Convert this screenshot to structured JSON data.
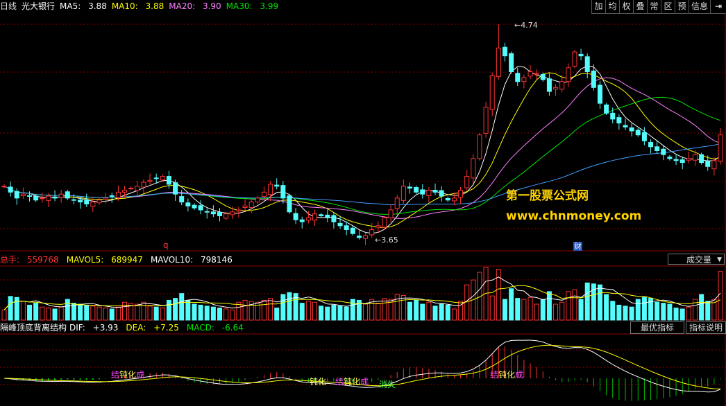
{
  "header": {
    "period": "日线",
    "stock": "光大银行",
    "ma5_label": "MA5:",
    "ma5": "3.88",
    "ma10_label": "MA10:",
    "ma10": "3.88",
    "ma20_label": "MA20:",
    "ma20": "3.90",
    "ma30_label": "MA30:",
    "ma30": "3.99"
  },
  "toolbar": [
    "加",
    "均",
    "权",
    "叠",
    "常",
    "区",
    "预"
  ],
  "toolbar_info": "信息",
  "price_panel": {
    "high_label": "4.74",
    "low_label": "3.65",
    "marker_q": "q",
    "marker_cai": "财"
  },
  "watermark": {
    "line1": "第一股票公式网",
    "line2": "www.chnmoney.com"
  },
  "volume_header": {
    "total_label": "总手:",
    "total": "559768",
    "mavol5_label": "MAVOL5:",
    "mavol5": "689947",
    "mavol10_label": "MAVOL10:",
    "mavol10": "798146",
    "dropdown": "成交量"
  },
  "macd_header": {
    "name": "隔峰顶底背离结构",
    "dif_label": "DIF:",
    "dif": "+3.93",
    "dea_label": "DEA:",
    "dea": "+7.25",
    "macd_label": "MACD:",
    "macd": "-6.64",
    "btn_best": "最优指标",
    "btn_help": "指标说明"
  },
  "macd_annotations": [
    {
      "text": "结",
      "color": "#ff44ff"
    },
    {
      "text": "钝化",
      "color": "#ffff66"
    },
    {
      "text": "成",
      "color": "#ff44ff"
    },
    {
      "text": "钝化",
      "color": "#ffff66"
    },
    {
      "text": "结",
      "color": "#ff44ff"
    },
    {
      "text": "钝化",
      "color": "#ffff66"
    },
    {
      "text": "成",
      "color": "#ff44ff"
    },
    {
      "text": "消失",
      "color": "#44ff44"
    },
    {
      "text": "结",
      "color": "#ff44ff"
    },
    {
      "text": "钝化",
      "color": "#ffff66"
    },
    {
      "text": "成",
      "color": "#ff44ff"
    }
  ],
  "colors": {
    "up": "#ff3232",
    "down": "#54fcfc",
    "ma5": "#ffffff",
    "ma10": "#ffff00",
    "ma20": "#ff80ff",
    "ma30": "#00e600",
    "ma60": "#40a0ff",
    "grid": "#8b0000"
  },
  "chart_data": {
    "type": "candlestick",
    "ohlc_start": [
      3.92,
      3.9,
      3.86,
      3.88,
      3.85,
      3.86,
      3.88,
      3.87
    ],
    "price_levels": {
      "high": 4.74,
      "low": 3.65,
      "ma5": 3.88,
      "ma10": 3.88,
      "ma20": 3.9,
      "ma30": 3.99
    },
    "volume_levels": {
      "total": 559768,
      "mavol5": 689947,
      "mavol10": 798146
    },
    "macd_levels": {
      "dif": 3.93,
      "dea": 7.25,
      "macd": -6.64
    },
    "closes": [
      3.92,
      3.89,
      3.86,
      3.88,
      3.87,
      3.85,
      3.86,
      3.87,
      3.86,
      3.88,
      3.86,
      3.85,
      3.84,
      3.83,
      3.84,
      3.85,
      3.86,
      3.87,
      3.89,
      3.9,
      3.91,
      3.92,
      3.94,
      3.95,
      3.96,
      3.97,
      3.93,
      3.88,
      3.84,
      3.82,
      3.81,
      3.8,
      3.79,
      3.78,
      3.77,
      3.78,
      3.79,
      3.8,
      3.82,
      3.84,
      3.86,
      3.89,
      3.93,
      3.92,
      3.86,
      3.79,
      3.75,
      3.74,
      3.76,
      3.78,
      3.77,
      3.76,
      3.74,
      3.72,
      3.7,
      3.68,
      3.66,
      3.67,
      3.7,
      3.72,
      3.76,
      3.8,
      3.86,
      3.92,
      3.91,
      3.89,
      3.88,
      3.9,
      3.89,
      3.87,
      3.85,
      3.86,
      3.9,
      3.97,
      4.06,
      4.18,
      4.32,
      4.48,
      4.62,
      4.58,
      4.5,
      4.45,
      4.47,
      4.5,
      4.49,
      4.46,
      4.4,
      4.42,
      4.45,
      4.52,
      4.6,
      4.58,
      4.5,
      4.42,
      4.34,
      4.29,
      4.26,
      4.24,
      4.22,
      4.2,
      4.18,
      4.15,
      4.12,
      4.1,
      4.08,
      4.06,
      4.05,
      4.04,
      4.06,
      4.08,
      4.04,
      4.02,
      4.05,
      4.18
    ]
  }
}
